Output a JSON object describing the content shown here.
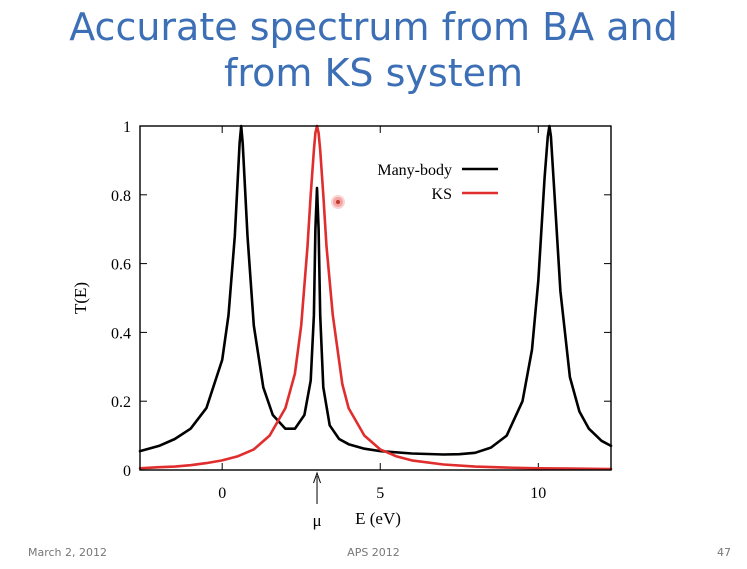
{
  "slide": {
    "title_line1": "Accurate spectrum from BA and",
    "title_line2": "from KS system",
    "footer_left": "March 2, 2012",
    "footer_center": "APS 2012",
    "footer_right": "47"
  },
  "chart_data": {
    "type": "line",
    "xlabel": "E (eV)",
    "ylabel": "T(E)",
    "xlim": [
      -2.6,
      12.3
    ],
    "ylim": [
      0,
      1
    ],
    "xticks": [
      0,
      5,
      10
    ],
    "xtick_labels": [
      "0",
      "5",
      "10"
    ],
    "yticks": [
      0,
      0.2,
      0.4,
      0.6,
      0.8,
      1
    ],
    "ytick_labels": [
      "0",
      "0.2",
      "0.4",
      "0.6",
      "0.8",
      "1"
    ],
    "grid": false,
    "legend_position": "top-right",
    "annotation": {
      "label": "μ",
      "x": 3.0
    },
    "series": [
      {
        "name": "Many-body",
        "color": "#000000",
        "x": [
          -2.6,
          -2,
          -1.5,
          -1,
          -0.5,
          0,
          0.2,
          0.4,
          0.55,
          0.6,
          0.65,
          0.8,
          1.0,
          1.3,
          1.6,
          2.0,
          2.3,
          2.6,
          2.8,
          2.9,
          2.95,
          3.0,
          3.05,
          3.1,
          3.2,
          3.4,
          3.7,
          4.0,
          4.5,
          5.0,
          6.0,
          7.0,
          7.5,
          8.0,
          8.5,
          9.0,
          9.5,
          9.8,
          10.0,
          10.2,
          10.3,
          10.35,
          10.4,
          10.5,
          10.7,
          11.0,
          11.3,
          11.6,
          12.0,
          12.3
        ],
        "y": [
          0.055,
          0.07,
          0.09,
          0.12,
          0.18,
          0.32,
          0.45,
          0.68,
          0.95,
          1.0,
          0.95,
          0.68,
          0.42,
          0.24,
          0.16,
          0.12,
          0.12,
          0.16,
          0.26,
          0.45,
          0.7,
          0.82,
          0.7,
          0.45,
          0.24,
          0.13,
          0.09,
          0.075,
          0.062,
          0.055,
          0.048,
          0.045,
          0.046,
          0.05,
          0.065,
          0.1,
          0.2,
          0.35,
          0.55,
          0.85,
          0.97,
          1.0,
          0.97,
          0.82,
          0.52,
          0.27,
          0.17,
          0.12,
          0.085,
          0.07
        ]
      },
      {
        "name": "KS",
        "color": "#e02d2d",
        "x": [
          -2.6,
          -2,
          -1.5,
          -1,
          -0.5,
          0,
          0.5,
          1.0,
          1.5,
          2.0,
          2.3,
          2.5,
          2.7,
          2.8,
          2.9,
          2.95,
          3.0,
          3.05,
          3.1,
          3.2,
          3.3,
          3.5,
          3.8,
          4.0,
          4.5,
          5.0,
          5.5,
          6.0,
          7.0,
          8.0,
          9.0,
          10.0,
          11.0,
          12.3
        ],
        "y": [
          0.005,
          0.008,
          0.01,
          0.014,
          0.02,
          0.028,
          0.04,
          0.06,
          0.1,
          0.18,
          0.28,
          0.42,
          0.65,
          0.8,
          0.93,
          0.98,
          1.0,
          0.98,
          0.93,
          0.8,
          0.65,
          0.45,
          0.25,
          0.18,
          0.1,
          0.06,
          0.04,
          0.028,
          0.016,
          0.01,
          0.007,
          0.005,
          0.004,
          0.003
        ]
      }
    ]
  }
}
